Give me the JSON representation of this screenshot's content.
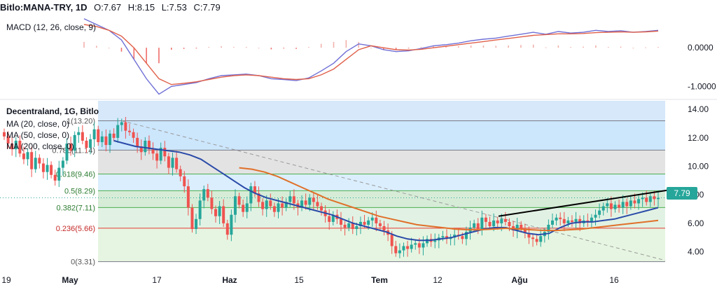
{
  "header": {
    "symbol": "Bitlo:MANA-TRY, 1D",
    "o_label": "O:",
    "o_value": "7.67",
    "h_label": "H:",
    "h_value": "8.15",
    "l_label": "L:",
    "l_value": "7.53",
    "c_label": "C:",
    "c_value": "7.79"
  },
  "macd_legend": "MACD (12, 26, close, 9)",
  "main_legend": {
    "title": "Decentraland, 1G, Bitlo",
    "ma20": "MA (20, close, 0)",
    "ma50": "MA (50, close, 0)",
    "ma200": "MA (200, close, 0)"
  },
  "last_price": "7.79",
  "colors": {
    "up": "#26a69a",
    "down": "#ef5350",
    "ma20": "#2a4aa8",
    "ma50": "#e0702a",
    "macd": "#6f6fd6",
    "signal": "#e0604a",
    "trendline": "#000000",
    "dashed": "#9a9a9a"
  },
  "chart_data": [
    {
      "type": "line",
      "name_text": "MACD (12, 26, close, 9)",
      "y_ticks": [
        "0.0000",
        "-1.0000"
      ],
      "y_tick_values": [
        0,
        -1
      ],
      "ylim": [
        -1.3,
        0.8
      ],
      "x": [
        0,
        5,
        10,
        15,
        20,
        25,
        30,
        35,
        40,
        45,
        50,
        55,
        60,
        65,
        70,
        75,
        80,
        85,
        90,
        95,
        100,
        105,
        110,
        115,
        120,
        125,
        130,
        135,
        140,
        145,
        150,
        155,
        160,
        165,
        170,
        175,
        180,
        185,
        190,
        195,
        200,
        205,
        210,
        215,
        220,
        225,
        230
      ],
      "series": [
        {
          "name": "macd",
          "values": [
            0.75,
            0.6,
            0.45,
            0.2,
            -0.3,
            -0.8,
            -1.2,
            -1.0,
            -0.95,
            -0.9,
            -0.8,
            -0.72,
            -0.7,
            -0.68,
            -0.72,
            -0.8,
            -0.82,
            -0.85,
            -0.78,
            -0.6,
            -0.4,
            -0.1,
            0.1,
            0.05,
            -0.05,
            -0.1,
            -0.08,
            -0.02,
            0.05,
            0.08,
            0.12,
            0.18,
            0.22,
            0.25,
            0.3,
            0.35,
            0.4,
            0.35,
            0.42,
            0.38,
            0.4,
            0.45,
            0.42,
            0.44,
            0.4,
            0.42,
            0.45
          ]
        },
        {
          "name": "signal",
          "values": [
            0.6,
            0.55,
            0.45,
            0.3,
            0.0,
            -0.4,
            -0.8,
            -0.95,
            -0.92,
            -0.88,
            -0.82,
            -0.76,
            -0.72,
            -0.7,
            -0.72,
            -0.76,
            -0.8,
            -0.82,
            -0.8,
            -0.7,
            -0.55,
            -0.3,
            -0.05,
            0.05,
            0.0,
            -0.05,
            -0.06,
            -0.04,
            0.0,
            0.04,
            0.08,
            0.12,
            0.16,
            0.2,
            0.24,
            0.28,
            0.32,
            0.34,
            0.36,
            0.36,
            0.37,
            0.39,
            0.4,
            0.41,
            0.4,
            0.41,
            0.43
          ]
        }
      ],
      "histogram": [
        0.15,
        0.05,
        0.0,
        -0.1,
        -0.3,
        -0.4,
        -0.4,
        -0.05,
        -0.03,
        -0.02,
        0.02,
        0.04,
        0.02,
        0.02,
        0.0,
        -0.04,
        -0.02,
        -0.03,
        0.02,
        0.1,
        0.15,
        0.2,
        0.15,
        0.0,
        -0.05,
        -0.05,
        -0.02,
        0.02,
        0.05,
        0.04,
        0.04,
        0.06,
        0.06,
        0.05,
        0.06,
        0.07,
        0.08,
        0.01,
        0.06,
        0.02,
        0.03,
        0.06,
        0.02,
        0.03,
        0.0,
        0.01,
        0.02
      ]
    },
    {
      "type": "candlestick",
      "title": "Decentraland, 1G, Bitlo",
      "x_ticks": [
        "19",
        "May",
        "17",
        "Haz",
        "15",
        "Tem",
        "12",
        "Ağu",
        "16"
      ],
      "x_tick_index": [
        0,
        30,
        65,
        100,
        133,
        165,
        197,
        232,
        268
      ],
      "y_ticks": [
        "14.00",
        "12.00",
        "10.00",
        "8.00",
        "6.00",
        "4.00"
      ],
      "y_tick_values": [
        14,
        12,
        10,
        8,
        6,
        4
      ],
      "ylim": [
        2.8,
        14.6
      ],
      "fib_levels": [
        {
          "label": "1(13.20)",
          "value": 13.2
        },
        {
          "label": "0.786(11.14)",
          "value": 11.14
        },
        {
          "label": "0.618(9.46)",
          "value": 9.46
        },
        {
          "label": "0.5(8.29)",
          "value": 8.29
        },
        {
          "label": "0.382(7.11)",
          "value": 7.11
        },
        {
          "label": "0.236(5.66)",
          "value": 5.66
        },
        {
          "label": "0(3.31)",
          "value": 3.31
        }
      ],
      "closes": [
        12.1,
        11.6,
        11.2,
        11.8,
        10.9,
        10.5,
        11.0,
        9.8,
        10.6,
        10.2,
        9.6,
        10.1,
        9.4,
        9.0,
        9.9,
        10.4,
        11.6,
        11.1,
        12.2,
        12.4,
        11.8,
        11.3,
        11.9,
        12.6,
        11.7,
        12.1,
        11.5,
        12.3,
        12.0,
        12.9,
        13.1,
        12.5,
        12.4,
        12.0,
        11.4,
        11.0,
        11.8,
        11.2,
        10.9,
        10.4,
        11.3,
        10.7,
        9.9,
        10.6,
        9.8,
        9.3,
        8.6,
        7.1,
        5.6,
        6.3,
        7.6,
        8.4,
        7.8,
        7.0,
        6.5,
        7.2,
        6.0,
        5.2,
        6.6,
        7.9,
        7.3,
        6.8,
        7.4,
        8.6,
        8.1,
        7.5,
        7.0,
        7.6,
        7.2,
        6.8,
        7.4,
        7.1,
        7.5,
        7.9,
        7.4,
        7.1,
        7.6,
        7.3,
        7.8,
        7.5,
        7.2,
        6.9,
        6.5,
        6.1,
        6.6,
        6.3,
        5.9,
        5.7,
        6.0,
        5.6,
        5.8,
        6.1,
        5.9,
        6.2,
        6.4,
        6.0,
        5.8,
        5.5,
        5.2,
        4.4,
        3.9,
        4.1,
        4.4,
        4.2,
        4.5,
        4.6,
        4.3,
        4.6,
        4.9,
        4.7,
        4.8,
        5.0,
        5.1,
        4.9,
        5.0,
        5.2,
        5.1,
        4.9,
        5.4,
        5.7,
        6.0,
        5.6,
        6.4,
        6.1,
        5.8,
        6.2,
        6.0,
        6.3,
        6.1,
        5.8,
        5.5,
        5.9,
        5.6,
        5.3,
        5.0,
        4.9,
        4.7,
        5.1,
        5.4,
        5.9,
        6.2,
        6.4,
        6.3,
        6.0,
        6.2,
        6.1,
        6.3,
        6.0,
        6.2,
        6.1,
        6.4,
        6.6,
        6.9,
        7.2,
        7.4,
        7.0,
        7.3,
        7.1,
        7.5,
        7.2,
        7.6,
        7.4,
        7.7,
        7.8,
        7.5,
        7.9,
        7.7,
        7.79
      ],
      "ma20": [
        11.8,
        11.6,
        11.4,
        11.3,
        11.2,
        11.1,
        11.0,
        10.8,
        10.5,
        10.0,
        9.5,
        9.0,
        8.5,
        8.1,
        7.8,
        7.6,
        7.4,
        7.2,
        7.0,
        6.8,
        6.6,
        6.3,
        6.0,
        5.8,
        5.6,
        5.4,
        5.1,
        4.9,
        4.8,
        4.8,
        4.9,
        5.0,
        5.2,
        5.4,
        5.6,
        5.7,
        5.7,
        5.5,
        5.3,
        5.2,
        5.3,
        5.7,
        6.0,
        6.1,
        6.1,
        6.2,
        6.3,
        6.5,
        6.7,
        6.9,
        7.1
      ],
      "ma50": [
        9.9,
        9.8,
        9.6,
        9.3,
        8.9,
        8.5,
        8.1,
        7.7,
        7.4,
        7.1,
        6.8,
        6.5,
        6.3,
        6.1,
        5.9,
        5.8,
        5.7,
        5.6,
        5.55,
        5.55,
        5.6,
        5.65,
        5.6,
        5.55,
        5.5,
        5.5,
        5.55,
        5.6,
        5.7,
        5.8,
        5.9,
        6.0,
        6.1,
        6.2
      ],
      "trendline": [
        [
          6.3,
          7.2
        ],
        [
          8.4,
          0
        ]
      ]
    }
  ]
}
